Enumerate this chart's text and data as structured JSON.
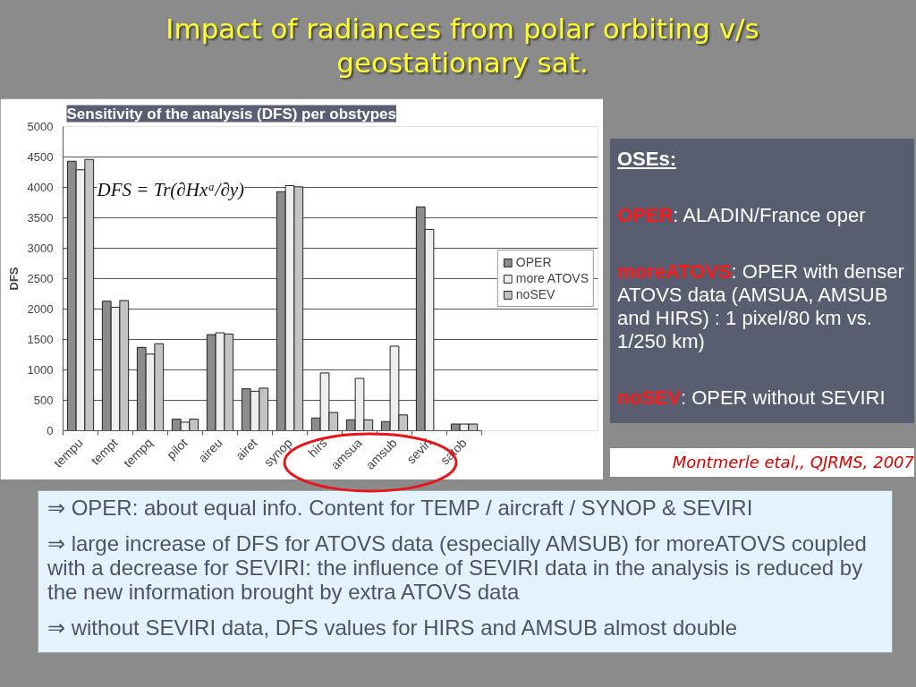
{
  "chart_data": {
    "type": "bar",
    "title": "Impact of radiances from polar orbiting v/s geostationary sat.",
    "subtitle": "Sensitivity of the analysis (DFS) per obstypes",
    "ylabel": "DFS",
    "categories": [
      "tempu",
      "tempt",
      "tempq",
      "pilot",
      "aireu",
      "airet",
      "synop",
      "hirs",
      "amsua",
      "amsub",
      "seviri",
      "satob"
    ],
    "series": [
      {
        "name": "OPER",
        "color": "#8c8c8c",
        "values": [
          4430,
          2130,
          1370,
          190,
          1580,
          690,
          3930,
          210,
          180,
          150,
          3680,
          110
        ]
      },
      {
        "name": "more ATOVS",
        "color": "#eeeeee",
        "values": [
          4290,
          2030,
          1260,
          140,
          1610,
          650,
          4030,
          950,
          860,
          1390,
          3310,
          110
        ]
      },
      {
        "name": "noSEV",
        "color": "#c4c4c4",
        "values": [
          4460,
          2140,
          1430,
          190,
          1590,
          700,
          4010,
          300,
          180,
          260,
          null,
          110
        ]
      }
    ],
    "ylim": [
      0,
      5000
    ],
    "yticks": [
      0,
      500,
      1000,
      1500,
      2000,
      2500,
      3000,
      3500,
      4000,
      4500,
      5000
    ],
    "grid": "y",
    "legend": "right",
    "annotations": [
      "DFS = Tr(∂Hxᵃ/∂y)",
      "OSEs:",
      "OPER: ALADIN/France oper",
      "moreATOVS: OPER with denser ATOVS data (AMSUA, AMSUB and HIRS) : 1 pixel/80 km vs. 1/250 km)",
      "noSEV: OPER without SEVIRI",
      "Montmerle etal,, QJRMS, 2007",
      "⇒ OPER: about equal info. Content for TEMP / aircraft / SYNOP & SEVIRI",
      "⇒ large increase of DFS for ATOVS data (especially AMSUB) for moreATOVS coupled with a decrease for SEVIRI: the influence of SEVIRI data in the analysis is reduced by the new information brought by extra ATOVS data",
      "⇒ without SEVIRI data, DFS values for HIRS and AMSUB almost double"
    ]
  }
}
